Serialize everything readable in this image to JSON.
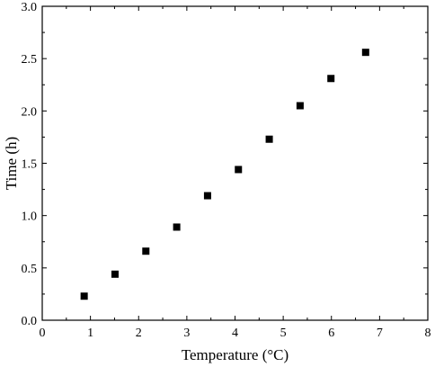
{
  "chart_data": {
    "type": "scatter",
    "xlabel": "Temperature (°C)",
    "ylabel": "Time (h)",
    "xlim": [
      0,
      8
    ],
    "ylim": [
      0,
      3.0
    ],
    "x_ticks": [
      "0",
      "1",
      "2",
      "3",
      "4",
      "5",
      "6",
      "7",
      "8"
    ],
    "y_ticks": [
      "0.0",
      "0.5",
      "1.0",
      "1.5",
      "2.0",
      "2.5",
      "3.0"
    ],
    "grid": false,
    "marker": "square",
    "marker_color": "#000000",
    "series": [
      {
        "x": [
          0.87,
          1.51,
          2.15,
          2.79,
          3.43,
          4.07,
          4.71,
          5.35,
          5.99,
          6.71
        ],
        "y": [
          0.23,
          0.44,
          0.66,
          0.89,
          1.19,
          1.44,
          1.73,
          2.05,
          2.31,
          2.56
        ]
      }
    ]
  }
}
